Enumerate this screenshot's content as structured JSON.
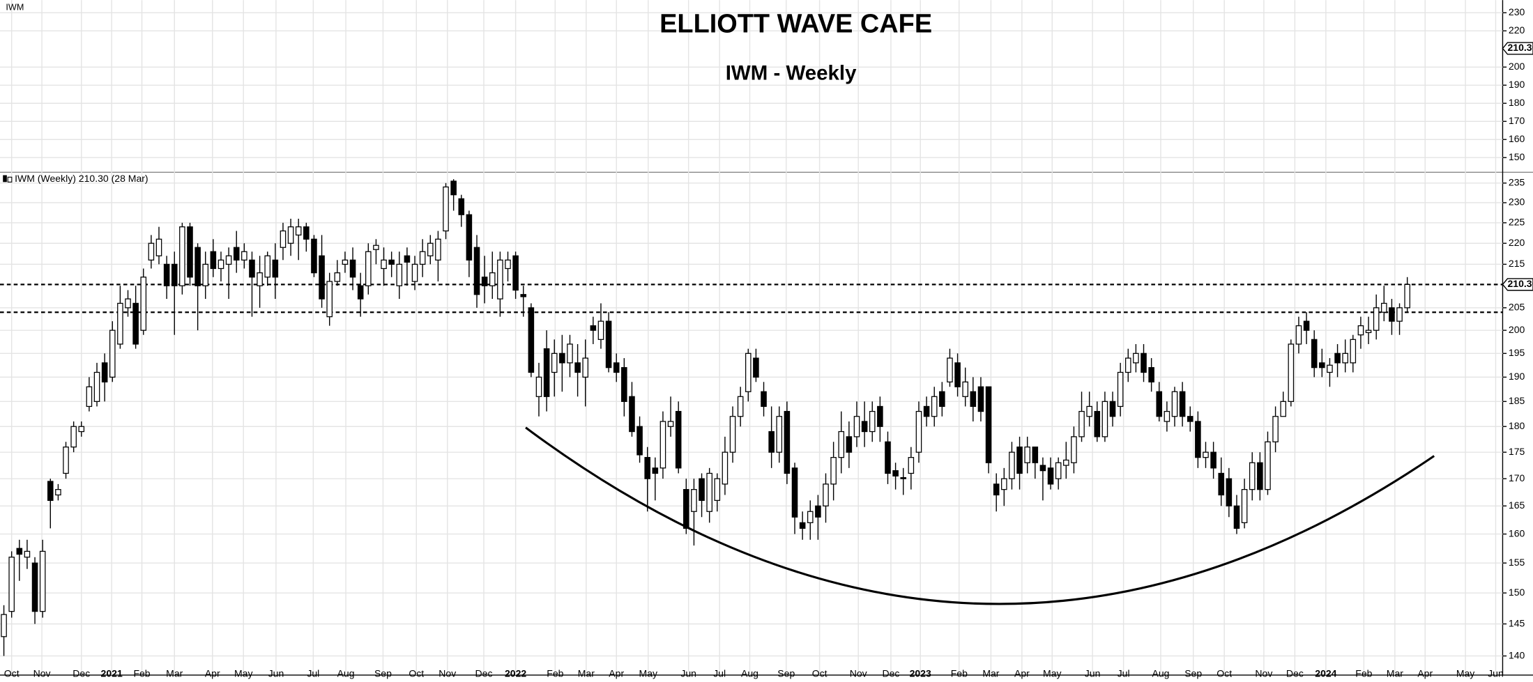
{
  "chart_data": [
    {
      "type": "candlestick",
      "title": "ELLIOTT WAVE CAFE",
      "subtitle": "IWM - Weekly",
      "legend": "IWM (Weekly) 210.30 (28 Mar)",
      "open": [
        143,
        147,
        157.5,
        156,
        155,
        147,
        169.5,
        167,
        171,
        176,
        179,
        184,
        185,
        193,
        190,
        197,
        205,
        206,
        200,
        216,
        217,
        215,
        215,
        210,
        224,
        219,
        210,
        218,
        214,
        215,
        219,
        216,
        216,
        210,
        212,
        216,
        219,
        220,
        222,
        224,
        221,
        217,
        203,
        211,
        215,
        216,
        210,
        210,
        218.5,
        214,
        216,
        210,
        217,
        211,
        215,
        217,
        216,
        223,
        235.5,
        231,
        227,
        219,
        212,
        210,
        207,
        214,
        217,
        208,
        205,
        186,
        196,
        191,
        195,
        193,
        193,
        190,
        201,
        198,
        202,
        193,
        192,
        186,
        180,
        174,
        172,
        172,
        180,
        183,
        168,
        164,
        170,
        164,
        166,
        169,
        175,
        182,
        187,
        194,
        187,
        179,
        175,
        183,
        172,
        162,
        162,
        165,
        165,
        169,
        174,
        178,
        178,
        181,
        179,
        184,
        177,
        171.5,
        170.2,
        171,
        175,
        184,
        182,
        187,
        189,
        193,
        186,
        187,
        188,
        188,
        169,
        168,
        170,
        176,
        173,
        176,
        172.5,
        172,
        170,
        172.5,
        173,
        178,
        182,
        183,
        178,
        185,
        184,
        191,
        193,
        195,
        192,
        187,
        181,
        182,
        187,
        182,
        181,
        174,
        175,
        171,
        170,
        165,
        162,
        168,
        173,
        168,
        177,
        182,
        185,
        197,
        202,
        198,
        193,
        191,
        195,
        193,
        193,
        199,
        199.5,
        200,
        204,
        205,
        202,
        205
      ],
      "high": [
        148,
        157,
        159,
        159,
        156,
        159,
        170,
        169,
        177,
        181,
        181,
        190,
        193,
        195,
        202,
        210,
        209,
        210,
        214,
        222,
        224,
        217,
        218,
        225,
        225,
        220,
        218,
        221,
        218,
        219,
        223,
        220,
        218,
        217,
        218,
        220,
        225,
        226,
        226,
        225,
        222,
        222,
        213,
        216,
        218,
        219,
        213,
        220,
        221,
        219,
        218,
        218,
        219,
        217,
        221,
        222,
        223,
        235,
        236,
        232,
        228,
        222,
        217,
        218,
        218,
        218,
        218,
        210,
        206,
        193,
        200,
        198,
        199,
        199,
        197,
        198,
        203,
        206,
        204,
        195,
        194,
        189,
        182,
        176,
        174,
        183,
        186,
        185,
        170,
        170,
        171,
        172,
        171,
        178,
        184,
        188,
        196,
        196,
        189,
        184,
        184,
        185,
        173,
        164,
        166,
        167,
        171,
        177,
        183,
        181,
        185,
        185,
        185,
        186,
        179,
        173,
        172,
        176,
        185,
        186,
        188,
        189,
        196,
        195,
        192,
        190,
        190,
        188,
        171,
        172,
        177,
        178,
        178,
        176,
        174,
        174,
        174,
        177,
        180,
        187,
        187,
        185,
        187,
        187,
        193,
        196,
        197,
        197,
        194,
        189,
        185,
        188,
        189,
        184,
        183,
        177,
        177,
        174,
        172,
        167,
        170,
        175,
        175,
        179,
        184,
        187,
        198,
        203,
        204,
        200,
        196,
        194,
        197,
        198,
        199,
        203,
        203,
        208,
        210,
        207,
        206,
        212
      ],
      "low": [
        140,
        146,
        152,
        154,
        145,
        146,
        161,
        166,
        170,
        175,
        178,
        183,
        184,
        185,
        189,
        196,
        203,
        196,
        199,
        214,
        215,
        207,
        199,
        208,
        210,
        200,
        207,
        212,
        211,
        207,
        213,
        214,
        203,
        205,
        210,
        207,
        216,
        217,
        216,
        218,
        212,
        205,
        201,
        210,
        213,
        209,
        203,
        208,
        215,
        210,
        212,
        207,
        210,
        209,
        212,
        215,
        211,
        221,
        228,
        224,
        212,
        205,
        206,
        207,
        203,
        211,
        207,
        203,
        190,
        182,
        183,
        186,
        187,
        190,
        186,
        184,
        197,
        196,
        191,
        189,
        182,
        178,
        173,
        164,
        166,
        170,
        178,
        171,
        160,
        158,
        163,
        162,
        164,
        167,
        173,
        180,
        185,
        189,
        182,
        172,
        173,
        169,
        160,
        159,
        159,
        159,
        162,
        166,
        171,
        172,
        176,
        176,
        177,
        177,
        169,
        168,
        167,
        168,
        173,
        180,
        180,
        182,
        188,
        186,
        184,
        181,
        181,
        171,
        164,
        165,
        168,
        168,
        171,
        170,
        166,
        168,
        168,
        170,
        171,
        177,
        180,
        177,
        177,
        180,
        182,
        189,
        191,
        189,
        187,
        181,
        179,
        180,
        180,
        179,
        172,
        172,
        170,
        165,
        163,
        160,
        161,
        166,
        166,
        167,
        175,
        182,
        184,
        195,
        197,
        190,
        190,
        188,
        190,
        191,
        191,
        196,
        197,
        198,
        202,
        199,
        199,
        204
      ],
      "close": [
        146.5,
        156,
        156.5,
        157,
        147,
        157,
        166,
        168,
        176,
        180,
        180,
        188,
        191,
        189,
        200,
        206,
        207,
        197,
        212,
        220,
        221,
        210,
        210,
        224,
        212,
        210,
        215,
        214,
        216,
        217,
        216,
        218,
        212,
        213,
        217,
        212,
        223,
        224,
        224,
        221,
        213,
        207,
        211,
        213,
        216,
        212,
        207,
        218,
        219.5,
        216,
        215,
        215,
        215.5,
        215,
        218,
        220,
        221,
        234,
        232,
        227,
        216,
        208,
        210,
        213,
        216,
        216,
        209,
        207.5,
        191,
        190,
        186,
        195,
        193,
        197,
        191,
        194,
        200,
        202,
        192,
        191,
        185,
        179,
        174.5,
        170,
        171,
        181,
        181,
        172,
        161,
        168,
        166,
        171,
        170,
        175,
        182,
        186,
        195,
        190,
        184,
        175,
        182,
        171,
        163,
        161,
        164,
        163,
        169,
        174,
        179,
        175,
        182,
        179,
        183,
        180,
        171,
        170.5,
        170,
        174,
        183,
        182,
        186,
        184,
        194,
        188,
        189,
        184,
        183,
        173,
        167,
        170,
        175,
        171,
        176,
        173,
        171.5,
        169,
        173,
        173.5,
        178,
        183,
        184,
        178,
        185,
        182,
        191,
        194,
        195,
        191,
        189,
        182,
        183,
        187,
        182,
        181,
        174,
        175,
        172,
        167,
        165,
        161,
        168,
        173,
        168,
        177,
        182,
        185,
        197,
        201,
        200,
        192,
        192,
        192.5,
        193,
        195,
        198,
        201,
        200,
        205,
        206,
        202,
        205,
        210.3
      ],
      "up_color": "#ffffff",
      "down_color": "#000000",
      "xlim": [
        -0.5,
        193.3
      ],
      "xticks": [
        {
          "value": 1.0,
          "label": "Oct"
        },
        {
          "value": 4.9,
          "label": "Nov"
        },
        {
          "value": 10.0,
          "label": "Dec"
        },
        {
          "value": 13.9,
          "label": "2021"
        },
        {
          "value": 17.8,
          "label": "Feb"
        },
        {
          "value": 22.0,
          "label": "Mar"
        },
        {
          "value": 26.9,
          "label": "Apr"
        },
        {
          "value": 30.9,
          "label": "May"
        },
        {
          "value": 35.1,
          "label": "Jun"
        },
        {
          "value": 39.9,
          "label": "Jul"
        },
        {
          "value": 44.1,
          "label": "Aug"
        },
        {
          "value": 48.9,
          "label": "Sep"
        },
        {
          "value": 53.2,
          "label": "Oct"
        },
        {
          "value": 57.2,
          "label": "Nov"
        },
        {
          "value": 61.9,
          "label": "Dec"
        },
        {
          "value": 66.0,
          "label": "2022"
        },
        {
          "value": 71.1,
          "label": "Feb"
        },
        {
          "value": 75.1,
          "label": "Mar"
        },
        {
          "value": 79.0,
          "label": "Apr"
        },
        {
          "value": 83.1,
          "label": "May"
        },
        {
          "value": 88.3,
          "label": "Jun"
        },
        {
          "value": 92.3,
          "label": "Jul"
        },
        {
          "value": 96.2,
          "label": "Aug"
        },
        {
          "value": 100.9,
          "label": "Sep"
        },
        {
          "value": 105.2,
          "label": "Oct"
        },
        {
          "value": 110.2,
          "label": "Nov"
        },
        {
          "value": 114.4,
          "label": "Dec"
        },
        {
          "value": 118.2,
          "label": "2023"
        },
        {
          "value": 123.2,
          "label": "Feb"
        },
        {
          "value": 127.3,
          "label": "Mar"
        },
        {
          "value": 131.3,
          "label": "Apr"
        },
        {
          "value": 135.2,
          "label": "May"
        },
        {
          "value": 140.4,
          "label": "Jun"
        },
        {
          "value": 144.4,
          "label": "Jul"
        },
        {
          "value": 149.2,
          "label": "Aug"
        },
        {
          "value": 153.4,
          "label": "Sep"
        },
        {
          "value": 157.4,
          "label": "Oct"
        },
        {
          "value": 162.5,
          "label": "Nov"
        },
        {
          "value": 166.5,
          "label": "Dec"
        },
        {
          "value": 170.5,
          "label": "2024"
        },
        {
          "value": 175.4,
          "label": "Feb"
        },
        {
          "value": 179.4,
          "label": "Mar"
        },
        {
          "value": 183.3,
          "label": "Apr"
        },
        {
          "value": 188.5,
          "label": "May"
        },
        {
          "value": 192.4,
          "label": "Jun"
        }
      ],
      "ylim": [
        137.1,
        237.8
      ],
      "log_scale": true,
      "yticks": [
        140,
        145,
        150,
        155,
        160,
        165,
        170,
        175,
        180,
        185,
        190,
        195,
        200,
        205,
        215,
        220,
        225,
        230,
        235
      ],
      "grid": true,
      "hlines": [
        210.3,
        204
      ],
      "last_label": "210.30"
    },
    {
      "type": "panel",
      "label": "IWM",
      "ylim": [
        141.9,
        237
      ],
      "yticks": [
        150,
        160,
        170,
        180,
        190,
        200,
        220,
        230
      ],
      "grid": true,
      "last_value": 210.3,
      "last_label": "210.30"
    }
  ]
}
